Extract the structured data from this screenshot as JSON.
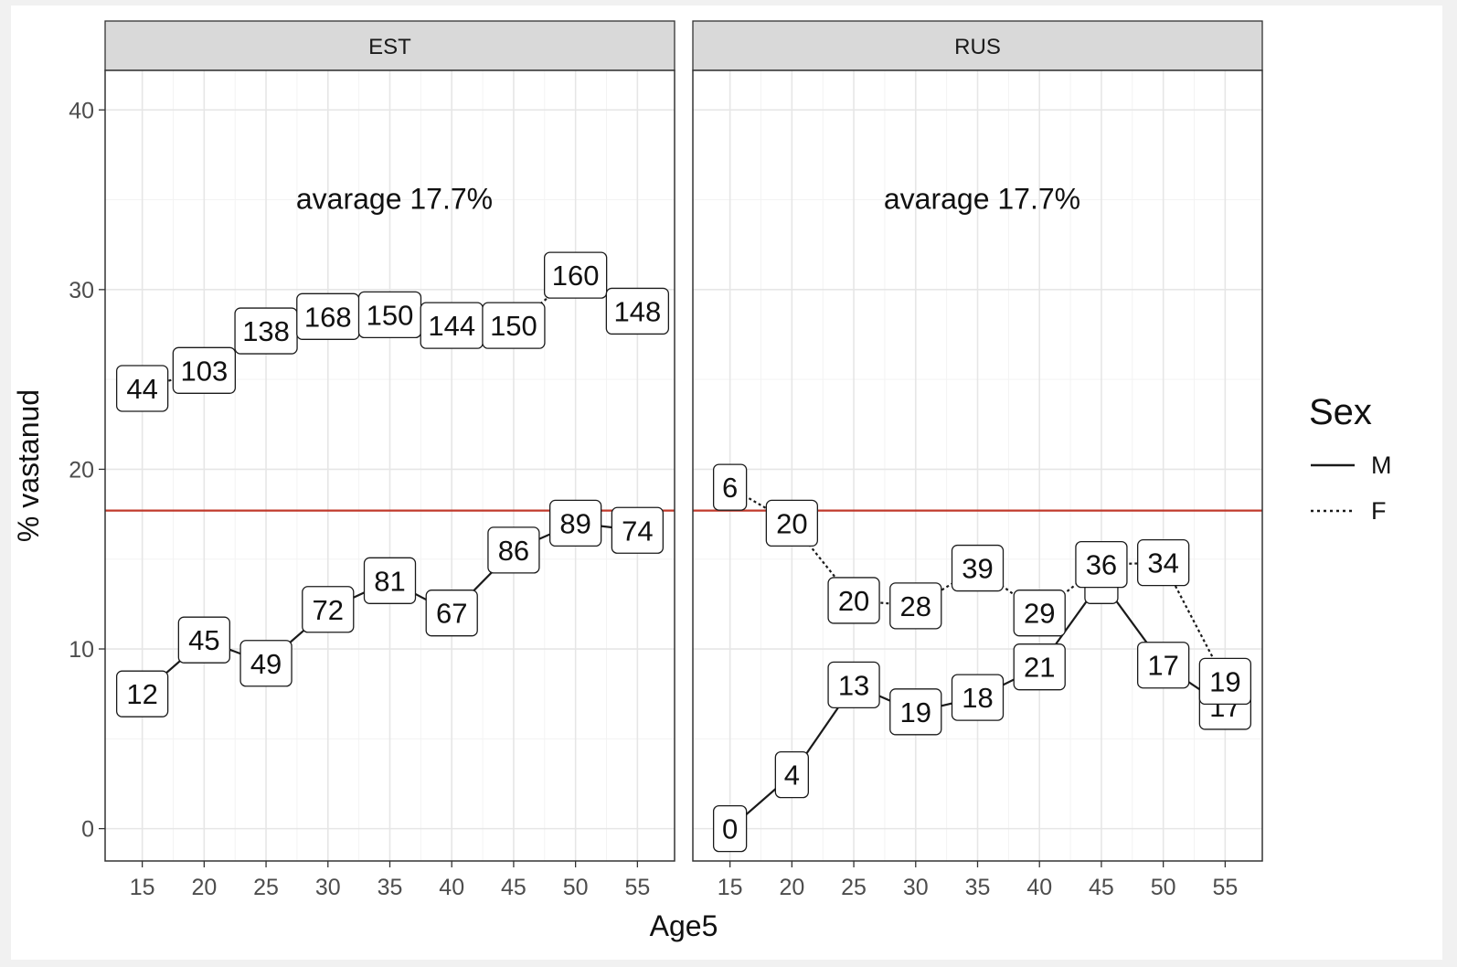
{
  "chart_data": {
    "type": "line",
    "facet_variable": "Group",
    "xlabel": "Age5",
    "ylabel": "% vastanud",
    "xlim": [
      12,
      58
    ],
    "ylim": [
      -1.8,
      42.2
    ],
    "x_ticks": [
      15,
      20,
      25,
      30,
      35,
      40,
      45,
      50,
      55
    ],
    "y_ticks": [
      0,
      10,
      20,
      30,
      40
    ],
    "grid": true,
    "reference_line": {
      "y": 17.7,
      "color": "#c0392b"
    },
    "legend": {
      "title": "Sex",
      "placement": "right",
      "entries": [
        {
          "label": "M",
          "linestyle": "solid"
        },
        {
          "label": "F",
          "linestyle": "dotted"
        }
      ]
    },
    "panels": [
      {
        "title": "EST",
        "annotation": "avarage 17.7%",
        "series": [
          {
            "name": "M",
            "linestyle": "solid",
            "x": [
              15,
              20,
              25,
              30,
              35,
              40,
              45,
              50,
              55
            ],
            "y": [
              7.5,
              10.5,
              9.2,
              12.2,
              13.8,
              12.0,
              15.5,
              17.0,
              16.6
            ],
            "labels": [
              "12",
              "45",
              "49",
              "72",
              "81",
              "67",
              "86",
              "89",
              "74"
            ]
          },
          {
            "name": "F",
            "linestyle": "dotted",
            "x": [
              15,
              20,
              25,
              30,
              35,
              40,
              45,
              50,
              55
            ],
            "y": [
              24.5,
              25.5,
              27.7,
              28.5,
              28.6,
              28.0,
              28.0,
              30.8,
              28.8
            ],
            "labels": [
              "44",
              "103",
              "138",
              "168",
              "150",
              "144",
              "150",
              "160",
              "148"
            ]
          }
        ]
      },
      {
        "title": "RUS",
        "annotation": "avarage 17.7%",
        "series": [
          {
            "name": "M",
            "linestyle": "solid",
            "x": [
              15,
              20,
              25,
              30,
              35,
              40,
              45,
              50,
              55
            ],
            "y": [
              0.0,
              3.0,
              8.0,
              6.5,
              7.3,
              9.0,
              13.8,
              9.1,
              6.8
            ],
            "labels": [
              "0",
              "4",
              "13",
              "19",
              "18",
              "21",
              "",
              "17",
              "17"
            ]
          },
          {
            "name": "F",
            "linestyle": "dotted",
            "x": [
              15,
              20,
              25,
              30,
              35,
              40,
              45,
              50,
              55
            ],
            "y": [
              19.0,
              17.0,
              12.7,
              12.4,
              14.5,
              12.0,
              14.7,
              14.8,
              8.2
            ],
            "labels": [
              "6",
              "20",
              "20",
              "28",
              "39",
              "29",
              "36",
              "34",
              "19"
            ]
          }
        ]
      }
    ]
  }
}
